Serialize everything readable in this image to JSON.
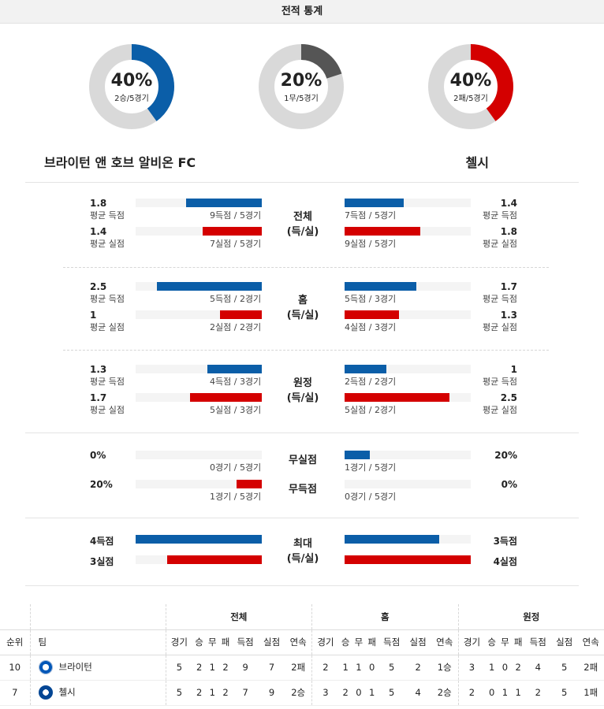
{
  "header": {
    "title": "전적 통계"
  },
  "donuts": [
    {
      "percent": "40%",
      "detail": "2승/5경기",
      "fraction": 0.4,
      "color": "#0b5ea8"
    },
    {
      "percent": "20%",
      "detail": "1무/5경기",
      "fraction": 0.2,
      "color": "#555555"
    },
    {
      "percent": "40%",
      "detail": "2패/5경기",
      "fraction": 0.4,
      "color": "#d40000"
    }
  ],
  "teams": {
    "home": "브라이턴 앤 호브 알비온 FC",
    "away": "첼시"
  },
  "sections": [
    {
      "label": "전체\n(득/실)",
      "rows": [
        {
          "home_val": "1.8",
          "home_lbl": "평균 득점",
          "home_cnt": "9득점 / 5경기",
          "home_frac": 0.6,
          "home_color": "blue",
          "away_val": "1.4",
          "away_lbl": "평균 득점",
          "away_cnt": "7득점 / 5경기",
          "away_frac": 0.47,
          "away_color": "blue"
        },
        {
          "home_val": "1.4",
          "home_lbl": "평균 실점",
          "home_cnt": "7실점 / 5경기",
          "home_frac": 0.47,
          "home_color": "red",
          "away_val": "1.8",
          "away_lbl": "평균 실점",
          "away_cnt": "9실점 / 5경기",
          "away_frac": 0.6,
          "away_color": "red"
        }
      ]
    },
    {
      "label": "홈\n(득/실)",
      "rows": [
        {
          "home_val": "2.5",
          "home_lbl": "평균 득점",
          "home_cnt": "5득점 / 2경기",
          "home_frac": 0.83,
          "home_color": "blue",
          "away_val": "1.7",
          "away_lbl": "평균 득점",
          "away_cnt": "5득점 / 3경기",
          "away_frac": 0.57,
          "away_color": "blue"
        },
        {
          "home_val": "1",
          "home_lbl": "평균 실점",
          "home_cnt": "2실점 / 2경기",
          "home_frac": 0.33,
          "home_color": "red",
          "away_val": "1.3",
          "away_lbl": "평균 실점",
          "away_cnt": "4실점 / 3경기",
          "away_frac": 0.43,
          "away_color": "red"
        }
      ]
    },
    {
      "label": "원정\n(득/실)",
      "rows": [
        {
          "home_val": "1.3",
          "home_lbl": "평균 득점",
          "home_cnt": "4득점 / 3경기",
          "home_frac": 0.43,
          "home_color": "blue",
          "away_val": "1",
          "away_lbl": "평균 득점",
          "away_cnt": "2득점 / 2경기",
          "away_frac": 0.33,
          "away_color": "blue"
        },
        {
          "home_val": "1.7",
          "home_lbl": "평균 실점",
          "home_cnt": "5실점 / 3경기",
          "home_frac": 0.57,
          "home_color": "red",
          "away_val": "2.5",
          "away_lbl": "평균 실점",
          "away_cnt": "5실점 / 2경기",
          "away_frac": 0.83,
          "away_color": "red"
        }
      ]
    }
  ],
  "clean": {
    "rows": [
      {
        "center": "무실점",
        "home_val": "0%",
        "home_cnt": "0경기 / 5경기",
        "home_frac": 0.0,
        "home_color": "red",
        "away_val": "20%",
        "away_cnt": "1경기 / 5경기",
        "away_frac": 0.2,
        "away_color": "blue"
      },
      {
        "center": "무득점",
        "home_val": "20%",
        "home_cnt": "1경기 / 5경기",
        "home_frac": 0.2,
        "home_color": "red",
        "away_val": "0%",
        "away_cnt": "0경기 / 5경기",
        "away_frac": 0.0,
        "away_color": "blue"
      }
    ]
  },
  "max": {
    "label": "최대\n(득/실)",
    "rows": [
      {
        "home_val": "4득점",
        "home_frac": 1.0,
        "home_color": "blue",
        "away_val": "3득점",
        "away_frac": 0.75,
        "away_color": "blue"
      },
      {
        "home_val": "3실점",
        "home_frac": 0.75,
        "home_color": "red",
        "away_val": "4실점",
        "away_frac": 1.0,
        "away_color": "red"
      }
    ]
  },
  "standings": {
    "groups": [
      "전체",
      "홈",
      "원정"
    ],
    "col_rank": "순위",
    "col_team": "팀",
    "sub_cols": [
      "경기",
      "승",
      "무",
      "패",
      "득점",
      "실점",
      "연속"
    ],
    "rows": [
      {
        "rank": "10",
        "team": "브라이턴",
        "crest": "brighton-crest-icon",
        "all": [
          "5",
          "2",
          "1",
          "2",
          "9",
          "7",
          "2패"
        ],
        "home": [
          "2",
          "1",
          "1",
          "0",
          "5",
          "2",
          "1승"
        ],
        "away": [
          "3",
          "1",
          "0",
          "2",
          "4",
          "5",
          "2패"
        ]
      },
      {
        "rank": "7",
        "team": "첼시",
        "crest": "chelsea-crest-icon",
        "all": [
          "5",
          "2",
          "1",
          "2",
          "7",
          "9",
          "2승"
        ],
        "home": [
          "3",
          "2",
          "0",
          "1",
          "5",
          "4",
          "2승"
        ],
        "away": [
          "2",
          "0",
          "1",
          "1",
          "2",
          "5",
          "1패"
        ]
      }
    ]
  }
}
